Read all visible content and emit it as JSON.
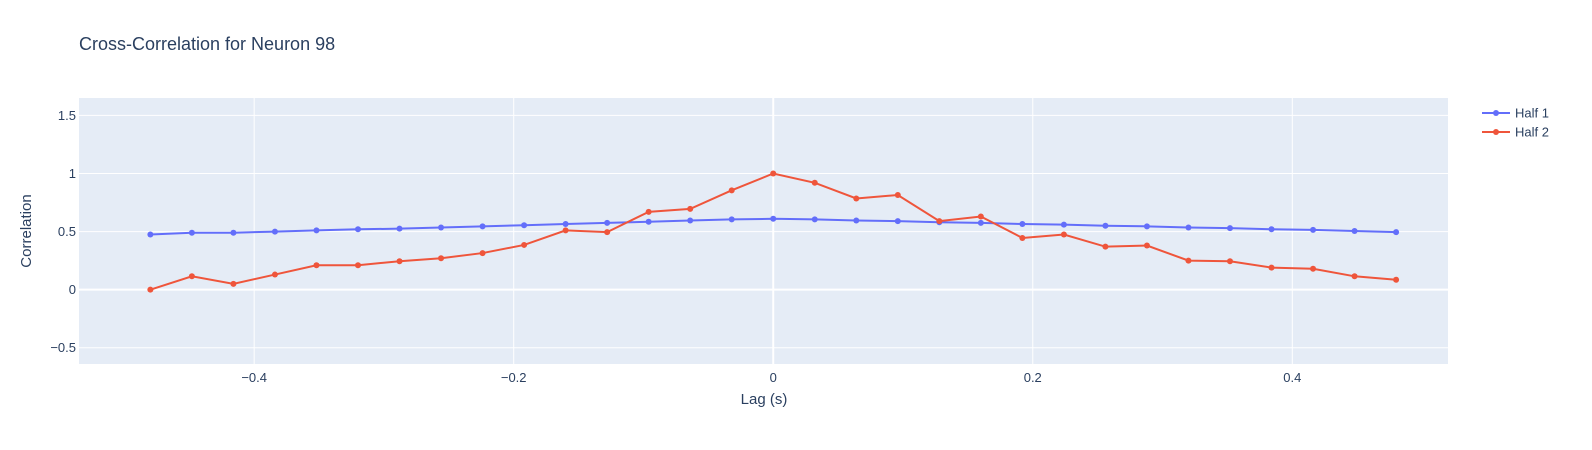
{
  "chart_data": {
    "type": "line",
    "title": "Cross-Correlation for Neuron 98",
    "xlabel": "Lag (s)",
    "ylabel": "Correlation",
    "xlim": [
      -0.535,
      0.52
    ],
    "ylim": [
      -0.64,
      1.65
    ],
    "xticks": [
      -0.4,
      -0.2,
      0,
      0.2,
      0.4
    ],
    "xtick_labels": [
      "−0.4",
      "−0.2",
      "0",
      "0.2",
      "0.4"
    ],
    "yticks": [
      -0.5,
      0,
      0.5,
      1,
      1.5
    ],
    "ytick_labels": [
      "−0.5",
      "0",
      "0.5",
      "1",
      "1.5"
    ],
    "grid": true,
    "legend": "top-right",
    "x": [
      -0.48,
      -0.448,
      -0.416,
      -0.384,
      -0.352,
      -0.32,
      -0.288,
      -0.256,
      -0.224,
      -0.192,
      -0.16,
      -0.128,
      -0.096,
      -0.064,
      -0.032,
      0,
      0.032,
      0.064,
      0.096,
      0.128,
      0.16,
      0.192,
      0.224,
      0.256,
      0.288,
      0.32,
      0.352,
      0.384,
      0.416,
      0.448,
      0.48
    ],
    "series": [
      {
        "name": "Half 1",
        "color": "#636efa",
        "values": [
          0.475,
          0.49,
          0.49,
          0.5,
          0.51,
          0.52,
          0.525,
          0.535,
          0.545,
          0.555,
          0.565,
          0.575,
          0.585,
          0.595,
          0.605,
          0.61,
          0.605,
          0.595,
          0.59,
          0.58,
          0.575,
          0.565,
          0.56,
          0.55,
          0.545,
          0.535,
          0.53,
          0.52,
          0.515,
          0.505,
          0.495
        ]
      },
      {
        "name": "Half 2",
        "color": "#ef553b",
        "values": [
          0.0,
          0.115,
          0.05,
          0.13,
          0.21,
          0.21,
          0.245,
          0.27,
          0.315,
          0.385,
          0.51,
          0.495,
          0.67,
          0.695,
          0.855,
          1.0,
          0.92,
          0.785,
          0.815,
          0.59,
          0.63,
          0.445,
          0.475,
          0.37,
          0.38,
          0.25,
          0.245,
          0.19,
          0.18,
          0.115,
          0.085
        ]
      }
    ]
  }
}
